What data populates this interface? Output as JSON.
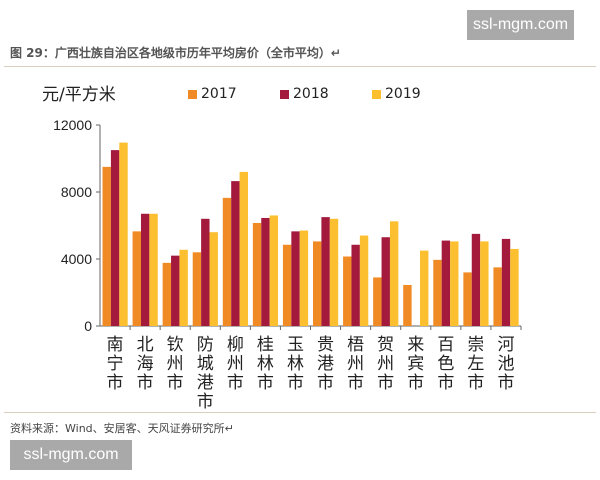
{
  "watermark": "ssl-mgm.com",
  "title": "图 29：广西壮族自治区各地级市历年平均房价（全市平均）↵",
  "footer": "资料来源：Wind、安居客、天风证券研究所↵",
  "colors": {
    "2017": "#f08a24",
    "2018": "#a31a3c",
    "2019": "#fbbf2f"
  },
  "chart_data": {
    "type": "bar",
    "ylabel": "元/平方米",
    "ylim": [
      0,
      12000
    ],
    "yticks": [
      0,
      4000,
      8000,
      12000
    ],
    "ytick_labels": [
      "0",
      "4000",
      "8000",
      "12000"
    ],
    "grid": false,
    "legend_placement": "top",
    "categories": [
      "南宁市",
      "北海市",
      "钦州市",
      "防城港市",
      "柳州市",
      "桂林市",
      "玉林市",
      "贵港市",
      "梧州市",
      "贺州市",
      "来宾市",
      "百色市",
      "崇左市",
      "河池市"
    ],
    "series": [
      {
        "name": "2017",
        "values": [
          9500,
          5650,
          3770,
          4400,
          7650,
          6150,
          4850,
          5050,
          4150,
          2900,
          2450,
          3950,
          3200,
          3500
        ]
      },
      {
        "name": "2018",
        "values": [
          10500,
          6700,
          4200,
          6400,
          8650,
          6450,
          5650,
          6500,
          4850,
          5300,
          null,
          5100,
          5500,
          5200
        ]
      },
      {
        "name": "2019",
        "values": [
          10950,
          6700,
          4550,
          5600,
          9200,
          6600,
          5700,
          6400,
          5400,
          6250,
          4500,
          5050,
          5050,
          4600
        ]
      }
    ]
  }
}
